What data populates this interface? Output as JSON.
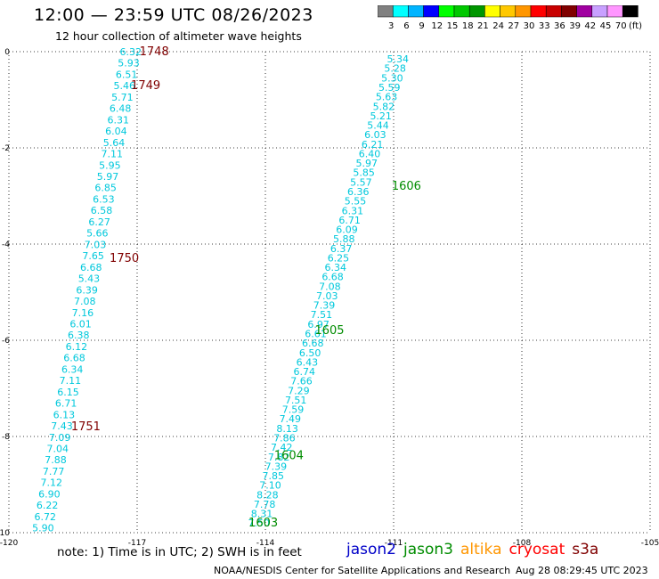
{
  "header": {
    "title": "12:00 — 23:59 UTC 08/26/2023",
    "subtitle": "12 hour collection of altimeter wave heights"
  },
  "colorbar": {
    "unit": "(ft)",
    "bins": [
      {
        "color": "#808080",
        "label": "3"
      },
      {
        "color": "#00ffff",
        "label": "6"
      },
      {
        "color": "#00b4ff",
        "label": "9"
      },
      {
        "color": "#0000ff",
        "label": "12"
      },
      {
        "color": "#00ff00",
        "label": "15"
      },
      {
        "color": "#00c800",
        "label": "18"
      },
      {
        "color": "#009600",
        "label": "21"
      },
      {
        "color": "#ffff00",
        "label": "24"
      },
      {
        "color": "#ffc800",
        "label": "27"
      },
      {
        "color": "#ff9600",
        "label": "30"
      },
      {
        "color": "#ff0000",
        "label": "33"
      },
      {
        "color": "#c80000",
        "label": "36"
      },
      {
        "color": "#800000",
        "label": "39"
      },
      {
        "color": "#a000a0",
        "label": "42"
      },
      {
        "color": "#c8a0ff",
        "label": "45"
      },
      {
        "color": "#ff96ff",
        "label": "70"
      },
      {
        "color": "#000000",
        "label": ""
      }
    ]
  },
  "footer": {
    "note": "note: 1) Time is in UTC; 2) SWH is in feet",
    "legend": [
      {
        "name": "jason2",
        "color": "#0000c8"
      },
      {
        "name": "jason3",
        "color": "#008c00"
      },
      {
        "name": "altika",
        "color": "#ff9600"
      },
      {
        "name": "cryosat",
        "color": "#ff0000"
      },
      {
        "name": "s3a",
        "color": "#800000"
      }
    ],
    "credit": "NOAA/NESDIS Center for Satellite Applications and Research",
    "timestamp": "Aug 28 08:29:45 UTC 2023"
  },
  "chart_data": {
    "type": "scatter",
    "xlim": [
      -120,
      -105
    ],
    "ylim": [
      -10,
      0
    ],
    "x_ticks": [
      "-120",
      "-117",
      "-114",
      "-111",
      "-108",
      "-105"
    ],
    "y_ticks": [
      "0",
      "-2",
      "-4",
      "-6",
      "-8",
      "-10"
    ],
    "grid": true,
    "tracks": [
      {
        "satellite": "s3a",
        "color": "#00c8dc",
        "label_color": "#800000",
        "start": [
          -117.15,
          0.0
        ],
        "end": [
          -119.2,
          -9.9
        ],
        "values": [
          "6.32",
          "5.93",
          "6.51",
          "5.46",
          "5.71",
          "6.48",
          "6.31",
          "6.04",
          "5.64",
          "7.11",
          "5.95",
          "5.97",
          "6.85",
          "6.53",
          "6.58",
          "6.27",
          "5.66",
          "7.03",
          "7.65",
          "6.68",
          "5.43",
          "6.39",
          "7.08",
          "7.16",
          "6.01",
          "6.38",
          "6.12",
          "6.68",
          "6.34",
          "7.11",
          "6.15",
          "6.71",
          "6.13",
          "7.43",
          "7.09",
          "7.04",
          "7.88",
          "7.77",
          "7.12",
          "6.90",
          "6.22",
          "6.72",
          "5.90"
        ],
        "times": [
          {
            "label": "1748",
            "x": -116.6,
            "y": 0.0
          },
          {
            "label": "1749",
            "x": -116.8,
            "y": -0.7
          },
          {
            "label": "1750",
            "x": -117.3,
            "y": -4.3
          },
          {
            "label": "1751",
            "x": -118.2,
            "y": -7.8
          }
        ]
      },
      {
        "satellite": "jason3",
        "color": "#00c8dc",
        "label_color": "#008c00",
        "start": [
          -110.9,
          -0.15
        ],
        "end": [
          -114.15,
          -9.8
        ],
        "values": [
          "5.34",
          "5.28",
          "5.30",
          "5.59",
          "5.63",
          "5.82",
          "5.21",
          "5.44",
          "6.03",
          "6.21",
          "6.40",
          "5.97",
          "5.85",
          "5.57",
          "6.36",
          "5.55",
          "6.31",
          "6.71",
          "6.09",
          "5.88",
          "6.37",
          "6.25",
          "6.34",
          "6.68",
          "7.08",
          "7.03",
          "7.39",
          "7.51",
          "6.97",
          "6.61",
          "6.68",
          "6.50",
          "6.43",
          "6.74",
          "7.66",
          "7.29",
          "7.51",
          "7.59",
          "7.49",
          "8.13",
          "7.86",
          "7.42",
          "7.82",
          "7.39",
          "7.85",
          "7.10",
          "8.28",
          "7.78",
          "8.31",
          "7.50"
        ],
        "times": [
          {
            "label": "1606",
            "x": -110.7,
            "y": -2.8
          },
          {
            "label": "1605",
            "x": -112.5,
            "y": -5.8
          },
          {
            "label": "1604",
            "x": -113.45,
            "y": -8.4
          },
          {
            "label": "1603",
            "x": -114.05,
            "y": -9.8
          }
        ]
      }
    ]
  }
}
